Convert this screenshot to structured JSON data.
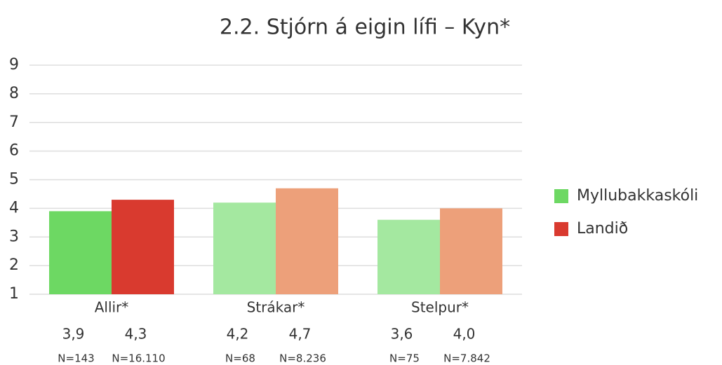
{
  "chart_data": {
    "type": "bar",
    "title": "2.2. Stjórn á eigin lífi – Kyn*",
    "categories": [
      "Allir*",
      "Strákar*",
      "Stelpur*"
    ],
    "series": [
      {
        "name": "Myllubakkaskóli",
        "color": "#6dd863",
        "colors": [
          "#6dd863",
          "#a4e8a0",
          "#a4e8a0"
        ],
        "values": [
          3.9,
          4.2,
          3.6
        ],
        "value_labels": [
          "3,9",
          "4,2",
          "3,6"
        ],
        "n_labels": [
          "N=143",
          "N=68",
          "N=75"
        ]
      },
      {
        "name": "Landið",
        "color": "#d93a2f",
        "colors": [
          "#d93a2f",
          "#eda07a",
          "#eda07a"
        ],
        "values": [
          4.3,
          4.7,
          4.0
        ],
        "value_labels": [
          "4,3",
          "4,7",
          "4,0"
        ],
        "n_labels": [
          "N=16.110",
          "N=8.236",
          "N=7.842"
        ]
      }
    ],
    "ylim": [
      1,
      9
    ],
    "yticks": [
      1,
      2,
      3,
      4,
      5,
      6,
      7,
      8,
      9
    ],
    "grid": true,
    "legend": "right"
  }
}
